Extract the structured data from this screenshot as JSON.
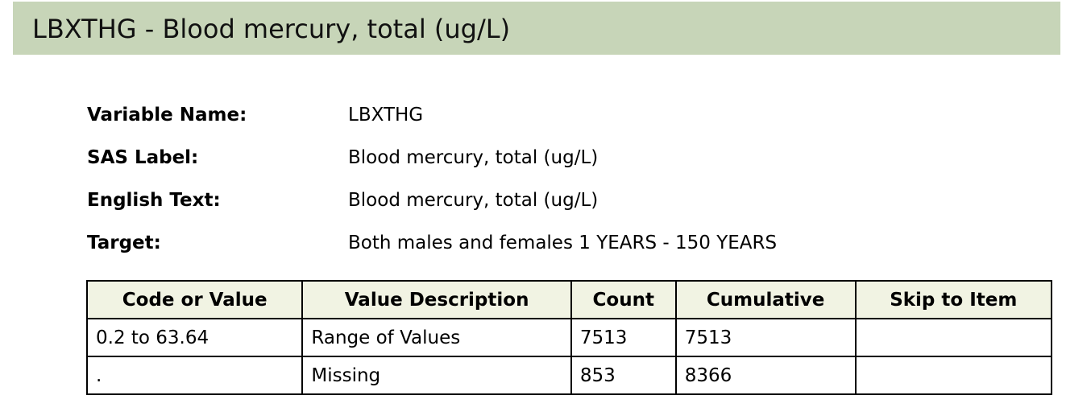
{
  "header": {
    "title": "LBXTHG - Blood mercury, total (ug/L)"
  },
  "info": {
    "rows": [
      {
        "label": "Variable Name:",
        "value": "LBXTHG"
      },
      {
        "label": "SAS Label:",
        "value": "Blood mercury, total (ug/L)"
      },
      {
        "label": "English Text:",
        "value": "Blood mercury, total (ug/L)"
      },
      {
        "label": "Target:",
        "value": "Both males and females 1 YEARS - 150 YEARS"
      }
    ]
  },
  "codebook": {
    "headers": [
      "Code or Value",
      "Value Description",
      "Count",
      "Cumulative",
      "Skip to Item"
    ],
    "rows": [
      [
        "0.2 to 63.64",
        "Range of Values",
        "7513",
        "7513",
        ""
      ],
      [
        ".",
        "Missing",
        "853",
        "8366",
        ""
      ]
    ]
  },
  "colors": {
    "header_bg": "#c7d5b8",
    "table_header_bg": "#f1f3e3",
    "border": "#000000"
  }
}
